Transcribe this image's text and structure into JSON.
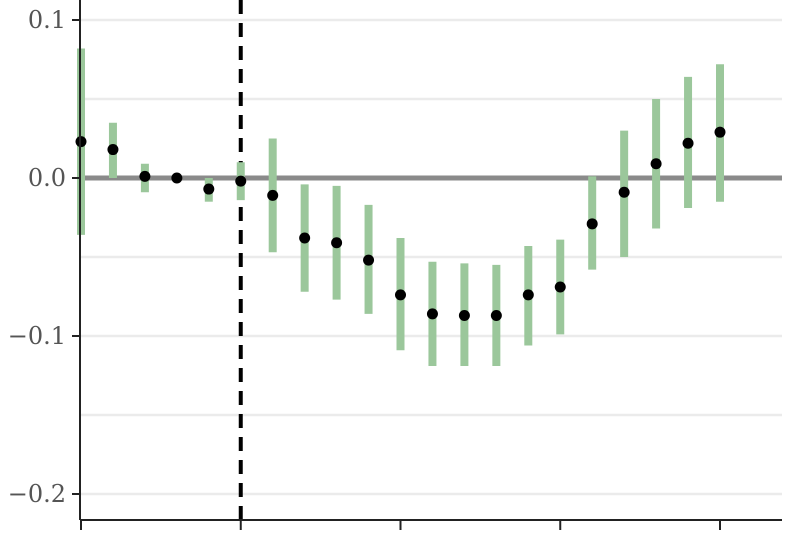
{
  "chart_data": {
    "type": "scatter",
    "subtype": "point-estimates-with-confidence-intervals",
    "title": "",
    "xlabel": "",
    "ylabel": "",
    "ylim": [
      -0.218,
      0.112
    ],
    "xlim": [
      -0.95,
      20.25
    ],
    "yticks": [
      0.1,
      0.0,
      -0.1,
      -0.2
    ],
    "ytick_labels": [
      "0.1",
      "0.0",
      "−0.1",
      "−0.2"
    ],
    "ygrid_minor": [
      0.05,
      -0.05,
      -0.15
    ],
    "xticks": [
      0,
      5,
      10,
      15,
      20
    ],
    "xtick_labels": [],
    "grid": true,
    "reference_line_y": 0.0,
    "vertical_dashed_line_x": 5,
    "colors": {
      "point": "#000000",
      "interval": "#9bc79b",
      "zero_line": "#8a8a8a",
      "grid": "#ebebeb",
      "axis": "#222222",
      "dashed_line": "#000000"
    },
    "series": [
      {
        "x": [
          1,
          2,
          3,
          4,
          5,
          6,
          7,
          8,
          9,
          10,
          11,
          12,
          13,
          14,
          15,
          16,
          17,
          18,
          19,
          20,
          21
        ],
        "estimate": [
          0.023,
          0.018,
          0.001,
          0.0,
          -0.007,
          -0.002,
          -0.011,
          -0.038,
          -0.041,
          -0.052,
          -0.074,
          -0.086,
          -0.087,
          -0.087,
          -0.074,
          -0.069,
          -0.029,
          -0.009,
          0.009,
          0.022,
          0.029
        ],
        "lower": [
          -0.036,
          0.0,
          -0.009,
          0.0,
          -0.015,
          -0.014,
          -0.047,
          -0.072,
          -0.077,
          -0.086,
          -0.109,
          -0.119,
          -0.119,
          -0.119,
          -0.106,
          -0.099,
          -0.058,
          -0.05,
          -0.032,
          -0.019,
          -0.015
        ],
        "upper": [
          0.082,
          0.035,
          0.009,
          0.0,
          0.0,
          0.01,
          0.025,
          -0.004,
          -0.005,
          -0.017,
          -0.038,
          -0.053,
          -0.054,
          -0.055,
          -0.043,
          -0.039,
          0.001,
          0.03,
          0.05,
          0.064,
          0.072
        ]
      }
    ]
  }
}
